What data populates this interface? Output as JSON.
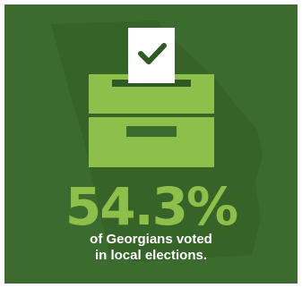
{
  "infographic": {
    "stat": "54.3%",
    "caption_line1": "of Georgians voted",
    "caption_line2": "in local elections.",
    "icon": "ballot-box-check-icon",
    "background_shape": "georgia-state-map",
    "colors": {
      "background": "#3c6b2f",
      "map_silhouette": "#356328",
      "accent_green": "#8cc04a",
      "ballot_paper": "#ffffff",
      "check": "#2f5a24",
      "caption_text": "#ffffff"
    }
  }
}
